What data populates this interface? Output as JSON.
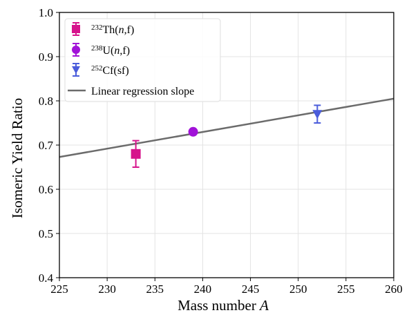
{
  "chart_data": {
    "type": "scatter",
    "xlabel": "Mass number ",
    "xlabel_italic": "A",
    "ylabel": "Isomeric Yield Ratio",
    "xlim": [
      225,
      260
    ],
    "ylim": [
      0.4,
      1.0
    ],
    "xticks": [
      225,
      230,
      235,
      240,
      245,
      250,
      255,
      260
    ],
    "yticks": [
      0.4,
      0.5,
      0.6,
      0.7,
      0.8,
      0.9,
      1.0
    ],
    "grid": true,
    "legend_position": "top-left",
    "series": [
      {
        "mass": "232",
        "element": "Th(",
        "particle": "n",
        "reaction_end": ",f)",
        "marker": "square",
        "color": "#d6148c",
        "x": 233,
        "y": 0.68,
        "yerr": 0.03
      },
      {
        "mass": "238",
        "element": "U(",
        "particle": "n",
        "reaction_end": ",f)",
        "marker": "circle",
        "color": "#a112d8",
        "x": 239,
        "y": 0.73,
        "yerr": 0.005
      },
      {
        "mass": "252",
        "element": "Cf(sf)",
        "particle": "",
        "reaction_end": "",
        "marker": "triangle-down",
        "color": "#4a5cdb",
        "x": 252,
        "y": 0.77,
        "yerr": 0.02
      }
    ],
    "regression": {
      "name": "Linear regression slope",
      "color": "#6b6b6b",
      "x": [
        225,
        260
      ],
      "y": [
        0.673,
        0.805
      ]
    }
  }
}
